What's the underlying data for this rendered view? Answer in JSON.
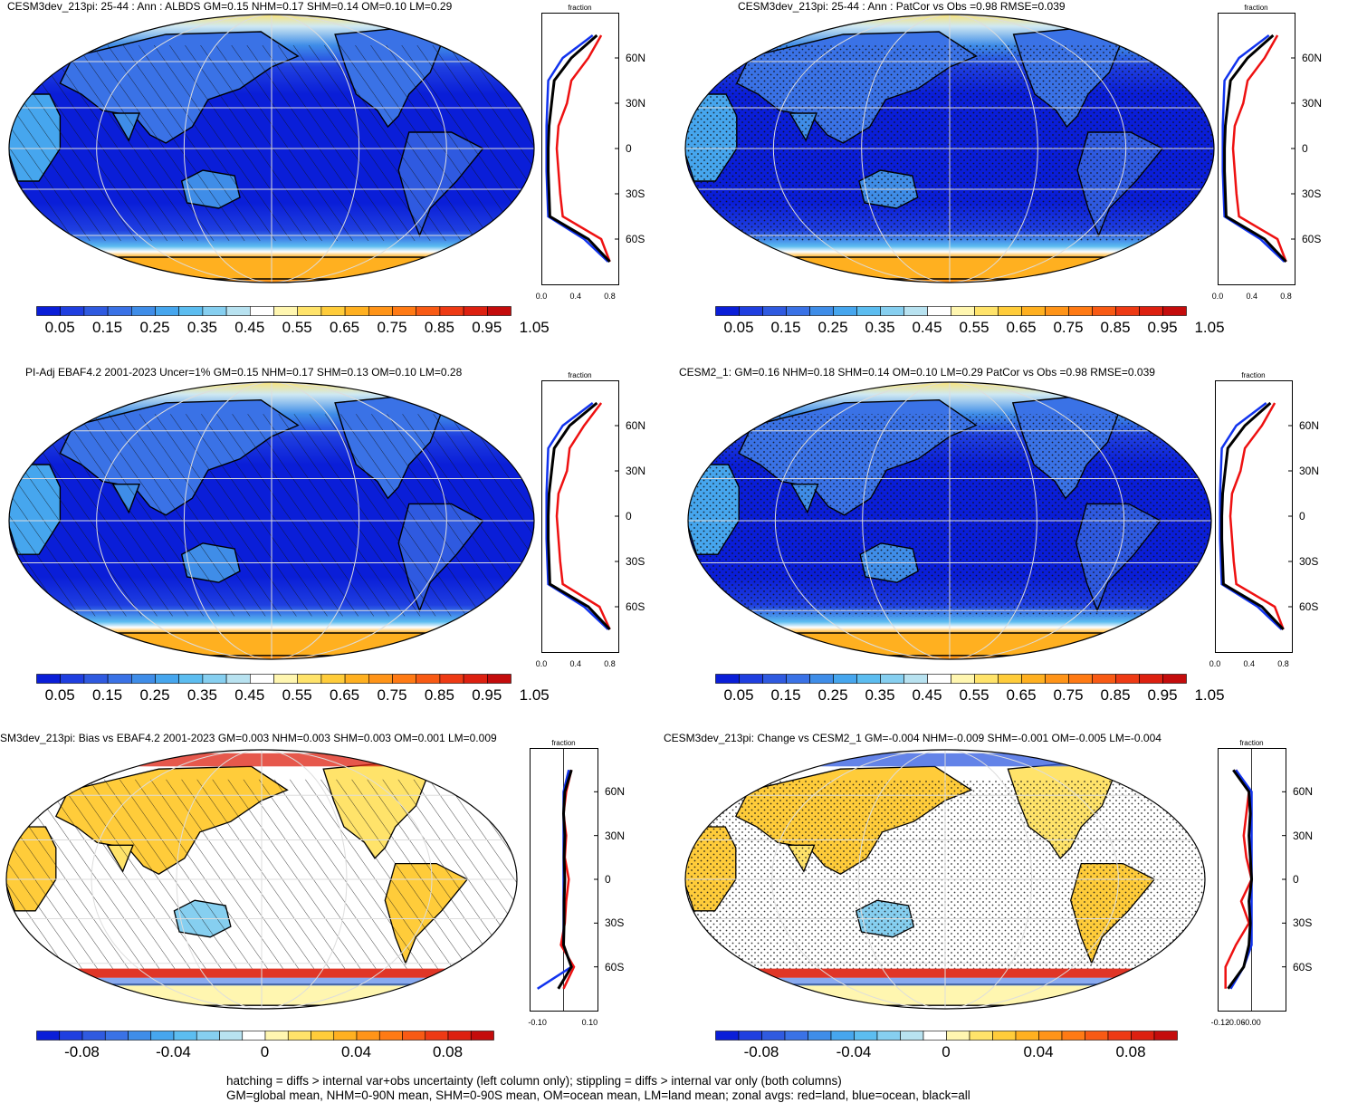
{
  "panels": [
    {
      "title": "CESM3dev_213pi: 25-44 : Ann : ALBDS GM=0.15 NHM=0.17 SHM=0.14 OM=0.10 LM=0.29",
      "kind": "abs",
      "overlay": "hatch"
    },
    {
      "title": "CESM3dev_213pi: 25-44 : Ann : PatCor vs Obs =0.98 RMSE=0.039",
      "kind": "abs",
      "overlay": "stipple"
    },
    {
      "title": "PI-Adj EBAF4.2 2001-2023 Uncer=1% GM=0.15 NHM=0.17 SHM=0.13 OM=0.10 LM=0.28",
      "kind": "abs",
      "overlay": "hatch"
    },
    {
      "title": "CESM2_1: GM=0.16 NHM=0.18 SHM=0.14 OM=0.10 LM=0.29 PatCor vs Obs =0.98 RMSE=0.039",
      "kind": "abs",
      "overlay": "stipple"
    },
    {
      "title": "SM3dev_213pi: Bias vs EBAF4.2 2001-2023 GM=0.003 NHM=0.003 SHM=0.003 OM=0.001 LM=0.009",
      "kind": "diff",
      "overlay": "hatch"
    },
    {
      "title": "CESM3dev_213pi: Change vs CESM2_1 GM=-0.004 NHM=-0.009 SHM=-0.001 OM=-0.005 LM=-0.004",
      "kind": "diff",
      "overlay": "stipple"
    }
  ],
  "profile": {
    "label": "fraction",
    "lat_labels": [
      "60N",
      "30N",
      "0",
      "30S",
      "60S"
    ],
    "abs_ticks": [
      "0.0",
      "0.4",
      "0.8"
    ],
    "diff_ticks_left": [
      "-0.10",
      "0.10"
    ],
    "diff_ticks_right": [
      "-0.12",
      "-0.06",
      "-0.00"
    ]
  },
  "colorbars": {
    "abs_labels": [
      "0.05",
      "0.15",
      "0.25",
      "0.35",
      "0.45",
      "0.55",
      "0.65",
      "0.75",
      "0.85",
      "0.95",
      "1.05"
    ],
    "diff_labels": [
      "-0.08",
      "-0.04",
      "0",
      "0.04",
      "0.08"
    ],
    "colors": [
      "#0a1ed8",
      "#1f3fe0",
      "#2f5ae0",
      "#3a72e6",
      "#3f8de8",
      "#46a6ee",
      "#5cbdf0",
      "#86cff0",
      "#b8e2f0",
      "#ffffff",
      "#fff6b0",
      "#ffe36a",
      "#ffcc3a",
      "#ffb020",
      "#ff9418",
      "#ff7a14",
      "#f85a14",
      "#ee3a14",
      "#dd2010",
      "#c40c0c"
    ]
  },
  "footer": [
    "hatching = diffs > internal var+obs uncertainty (left column only); stippling = diffs > internal var only (both columns)",
    "GM=global mean, NHM=0-90N mean, SHM=0-90S mean, OM=ocean mean, LM=land mean; zonal avgs: red=land, blue=ocean, black=all"
  ],
  "chart_data": [
    {
      "type": "heatmap",
      "title": "CESM3dev_213pi: 25-44 : Ann : ALBDS GM=0.15 NHM=0.17 SHM=0.14 OM=0.10 LM=0.29",
      "colorbar": [
        0.05,
        0.15,
        0.25,
        0.35,
        0.45,
        0.55,
        0.65,
        0.75,
        0.85,
        0.95,
        1.05
      ],
      "zonal": {
        "lat": [
          75,
          60,
          45,
          30,
          15,
          0,
          -15,
          -30,
          -45,
          -60,
          -75
        ],
        "land": [
          0.7,
          0.55,
          0.35,
          0.3,
          0.2,
          0.18,
          0.2,
          0.22,
          0.25,
          0.7,
          0.8
        ],
        "ocean": [
          0.6,
          0.25,
          0.08,
          0.07,
          0.06,
          0.06,
          0.06,
          0.07,
          0.08,
          0.5,
          0.78
        ],
        "all": [
          0.65,
          0.35,
          0.15,
          0.12,
          0.09,
          0.08,
          0.08,
          0.09,
          0.1,
          0.55,
          0.8
        ]
      }
    },
    {
      "type": "heatmap",
      "title": "CESM3dev_213pi: 25-44 : Ann : PatCor vs Obs =0.98 RMSE=0.039",
      "colorbar": [
        0.05,
        0.15,
        0.25,
        0.35,
        0.45,
        0.55,
        0.65,
        0.75,
        0.85,
        0.95,
        1.05
      ],
      "zonal": {
        "lat": [
          75,
          60,
          45,
          30,
          15,
          0,
          -15,
          -30,
          -45,
          -60,
          -75
        ],
        "land": [
          0.7,
          0.55,
          0.35,
          0.3,
          0.2,
          0.18,
          0.2,
          0.22,
          0.25,
          0.7,
          0.8
        ],
        "ocean": [
          0.6,
          0.25,
          0.08,
          0.07,
          0.06,
          0.06,
          0.06,
          0.07,
          0.08,
          0.5,
          0.78
        ],
        "all": [
          0.65,
          0.35,
          0.15,
          0.12,
          0.09,
          0.08,
          0.08,
          0.09,
          0.1,
          0.55,
          0.8
        ]
      }
    },
    {
      "type": "heatmap",
      "title": "PI-Adj EBAF4.2 2001-2023 Uncer=1% GM=0.15 NHM=0.17 SHM=0.13 OM=0.10 LM=0.28",
      "colorbar": [
        0.05,
        0.15,
        0.25,
        0.35,
        0.45,
        0.55,
        0.65,
        0.75,
        0.85,
        0.95,
        1.05
      ],
      "zonal": {
        "lat": [
          75,
          60,
          45,
          30,
          15,
          0,
          -15,
          -30,
          -45,
          -60,
          -75
        ],
        "land": [
          0.7,
          0.5,
          0.33,
          0.3,
          0.2,
          0.18,
          0.2,
          0.22,
          0.25,
          0.68,
          0.8
        ],
        "ocean": [
          0.6,
          0.25,
          0.08,
          0.07,
          0.06,
          0.06,
          0.06,
          0.07,
          0.08,
          0.5,
          0.78
        ],
        "all": [
          0.65,
          0.33,
          0.15,
          0.12,
          0.09,
          0.08,
          0.08,
          0.09,
          0.1,
          0.55,
          0.8
        ]
      }
    },
    {
      "type": "heatmap",
      "title": "CESM2_1: GM=0.16 NHM=0.18 SHM=0.14 OM=0.10 LM=0.29 PatCor vs Obs =0.98 RMSE=0.039",
      "colorbar": [
        0.05,
        0.15,
        0.25,
        0.35,
        0.45,
        0.55,
        0.65,
        0.75,
        0.85,
        0.95,
        1.05
      ],
      "zonal": {
        "lat": [
          75,
          60,
          45,
          30,
          15,
          0,
          -15,
          -30,
          -45,
          -60,
          -75
        ],
        "land": [
          0.7,
          0.55,
          0.35,
          0.3,
          0.2,
          0.18,
          0.2,
          0.22,
          0.25,
          0.7,
          0.8
        ],
        "ocean": [
          0.6,
          0.25,
          0.08,
          0.07,
          0.06,
          0.06,
          0.06,
          0.07,
          0.08,
          0.5,
          0.78
        ],
        "all": [
          0.65,
          0.35,
          0.15,
          0.12,
          0.09,
          0.08,
          0.08,
          0.09,
          0.1,
          0.55,
          0.8
        ]
      }
    },
    {
      "type": "heatmap",
      "title": "SM3dev_213pi: Bias vs EBAF4.2 2001-2023 GM=0.003 NHM=0.003 SHM=0.003 OM=0.001 LM=0.009",
      "colorbar": [
        -0.08,
        -0.04,
        0,
        0.04,
        0.08
      ],
      "zonal": {
        "lat": [
          75,
          60,
          45,
          30,
          15,
          0,
          -15,
          -30,
          -45,
          -60,
          -75
        ],
        "land": [
          0.03,
          0.01,
          0.0,
          0.01,
          0.005,
          0.02,
          0.01,
          0.005,
          -0.01,
          0.04,
          0.0
        ],
        "ocean": [
          0.02,
          0.0,
          0.0,
          0.0,
          0.0,
          0.0,
          0.0,
          0.0,
          0.0,
          0.03,
          -0.1
        ],
        "all": [
          0.03,
          0.005,
          0.0,
          0.005,
          0.002,
          0.005,
          0.002,
          0.002,
          0.0,
          0.03,
          -0.02
        ]
      }
    },
    {
      "type": "heatmap",
      "title": "CESM3dev_213pi: Change vs CESM2_1 GM=-0.004 NHM=-0.009 SHM=-0.001 OM=-0.005 LM=-0.004",
      "colorbar": [
        -0.08,
        -0.04,
        0,
        0.04,
        0.08
      ],
      "zonal": {
        "lat": [
          75,
          60,
          45,
          30,
          15,
          0,
          -15,
          -30,
          -45,
          -60,
          -75
        ],
        "land": [
          -0.06,
          -0.01,
          -0.02,
          -0.03,
          -0.02,
          0.0,
          -0.04,
          -0.01,
          -0.06,
          -0.1,
          -0.1
        ],
        "ocean": [
          -0.06,
          0.0,
          0.0,
          0.0,
          0.0,
          0.0,
          0.0,
          0.0,
          0.0,
          -0.03,
          -0.08
        ],
        "all": [
          -0.07,
          -0.01,
          -0.005,
          -0.01,
          -0.005,
          0.0,
          -0.01,
          -0.005,
          -0.01,
          -0.03,
          -0.09
        ]
      }
    }
  ]
}
